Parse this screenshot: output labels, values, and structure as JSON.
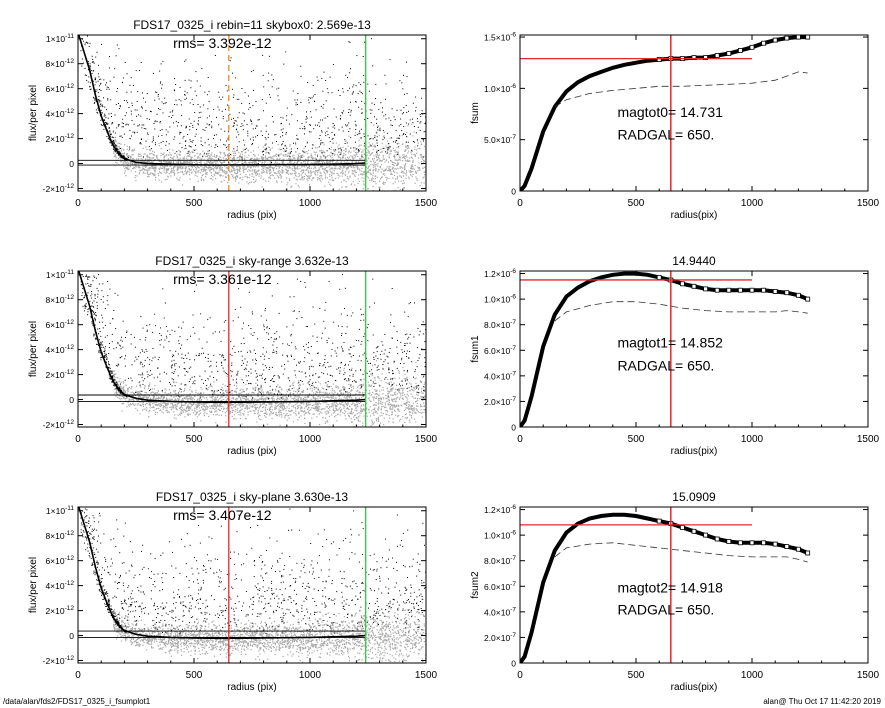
{
  "footer": {
    "path": "/data/alan/fds2/FDS17_0325_i_fsumplot1",
    "stamp": "alan@  Thu Oct 17 11:42:20 2019"
  },
  "colors": {
    "scatter_gray": "#a8a8a8",
    "scatter_black": "#000000",
    "red": "#e8262a",
    "green": "#2ecc40",
    "orange": "#f08a24"
  },
  "chart_data": [
    {
      "type": "scatter",
      "title": "FDS17_0325_i rebin=11    skybox0:  2.569e-13",
      "annotation": "rms= 3.392e-12",
      "xlabel": "radius (pix)",
      "ylabel": "flux/per pixel",
      "xlim": [
        0,
        1500
      ],
      "ylim": [
        -2.2e-12,
        1.03e-11
      ],
      "x_ticks": [
        {
          "v": 0,
          "label": "0"
        },
        {
          "v": 500,
          "label": "500"
        },
        {
          "v": 1000,
          "label": "1000"
        },
        {
          "v": 1500,
          "label": "1500"
        }
      ],
      "y_ticks": [
        {
          "v": -2e-12,
          "label": "-2×10",
          "exp": "-12"
        },
        {
          "v": 0,
          "label": "0",
          "exp": ""
        },
        {
          "v": 2e-12,
          "label": "2×10",
          "exp": "-12"
        },
        {
          "v": 4e-12,
          "label": "4×10",
          "exp": "-12"
        },
        {
          "v": 6e-12,
          "label": "6×10",
          "exp": "-12"
        },
        {
          "v": 8e-12,
          "label": "8×10",
          "exp": "-12"
        },
        {
          "v": 1e-11,
          "label": "1×10",
          "exp": "-11"
        }
      ],
      "profile": [
        [
          0,
          1.05e-11
        ],
        [
          50,
          7.5e-12
        ],
        [
          75,
          5.5e-12
        ],
        [
          100,
          3.8e-12
        ],
        [
          125,
          2.6e-12
        ],
        [
          150,
          1.5e-12
        ],
        [
          175,
          8e-13
        ],
        [
          200,
          4e-13
        ],
        [
          250,
          1e-13
        ],
        [
          300,
          0
        ],
        [
          400,
          -5e-14
        ],
        [
          500,
          -1e-13
        ],
        [
          600,
          -1.2e-13
        ],
        [
          800,
          -1e-13
        ],
        [
          1000,
          -8e-14
        ],
        [
          1100,
          -5e-14
        ],
        [
          1200,
          0
        ],
        [
          1240,
          5e-14
        ]
      ],
      "hlines": [
        2.569e-13,
        -1.2e-13
      ],
      "vlines": [
        {
          "x": 650,
          "color": "orange",
          "dashed": true
        },
        {
          "x": 1240,
          "color": "green",
          "dashed": false
        }
      ]
    },
    {
      "type": "line",
      "title": "",
      "xlabel": "radius(pix)",
      "ylabel": "fsum",
      "xlim": [
        0,
        1500
      ],
      "ylim": [
        0,
        1.52e-06
      ],
      "x_ticks": [
        {
          "v": 0,
          "label": "0"
        },
        {
          "v": 500,
          "label": "500"
        },
        {
          "v": 1000,
          "label": "1000"
        },
        {
          "v": 1500,
          "label": "1500"
        }
      ],
      "y_ticks": [
        {
          "v": 0,
          "label": "0",
          "exp": ""
        },
        {
          "v": 5e-07,
          "label": "5.0×10",
          "exp": "-7"
        },
        {
          "v": 1e-06,
          "label": "1.0×10",
          "exp": "-6"
        },
        {
          "v": 1.5e-06,
          "label": "1.5×10",
          "exp": "-6"
        }
      ],
      "series": [
        {
          "style": "solid-thick",
          "x": [
            0,
            20,
            50,
            100,
            150,
            200,
            250,
            300,
            350,
            400,
            450,
            500,
            550,
            600,
            650,
            700,
            750,
            800,
            850,
            900,
            950,
            1000,
            1050,
            1100,
            1150,
            1200,
            1240
          ],
          "y": [
            0,
            5e-08,
            2.2e-07,
            5.8e-07,
            8.2e-07,
            9.7e-07,
            1.06e-06,
            1.12e-06,
            1.16e-06,
            1.2e-06,
            1.23e-06,
            1.25e-06,
            1.27e-06,
            1.28e-06,
            1.29e-06,
            1.29e-06,
            1.3e-06,
            1.3e-06,
            1.32e-06,
            1.34e-06,
            1.37e-06,
            1.4e-06,
            1.44e-06,
            1.47e-06,
            1.49e-06,
            1.5e-06,
            1.5e-06
          ]
        },
        {
          "style": "dashed",
          "x": [
            150,
            200,
            300,
            400,
            500,
            600,
            700,
            800,
            900,
            1000,
            1100,
            1150,
            1200,
            1240
          ],
          "y": [
            8.2e-07,
            8.9e-07,
            9.5e-07,
            9.8e-07,
            1e-06,
            1.02e-06,
            1.02e-06,
            1.03e-06,
            1.04e-06,
            1.05e-06,
            1.08e-06,
            1.12e-06,
            1.16e-06,
            1.15e-06
          ]
        }
      ],
      "hline": {
        "y": 1.29e-06,
        "x_end": 1000
      },
      "vline": {
        "x": 650
      },
      "labels": [
        {
          "text": "magtot0=  14.731",
          "x": 420,
          "y": 7.2e-07
        },
        {
          "text": "RADGAL=    650.",
          "x": 420,
          "y": 5e-07
        }
      ]
    },
    {
      "type": "scatter",
      "title": "FDS17_0325_i sky-range  3.632e-13",
      "annotation": "rms= 3.361e-12",
      "xlabel": "radius (pix)",
      "ylabel": "flux/per pixel",
      "xlim": [
        0,
        1500
      ],
      "ylim": [
        -2.2e-12,
        1.03e-11
      ],
      "x_ticks": [
        {
          "v": 0,
          "label": "0"
        },
        {
          "v": 500,
          "label": "500"
        },
        {
          "v": 1000,
          "label": "1000"
        },
        {
          "v": 1500,
          "label": "1500"
        }
      ],
      "y_ticks": [
        {
          "v": -2e-12,
          "label": "-2×10",
          "exp": "-12"
        },
        {
          "v": 0,
          "label": "0",
          "exp": ""
        },
        {
          "v": 2e-12,
          "label": "2×10",
          "exp": "-12"
        },
        {
          "v": 4e-12,
          "label": "4×10",
          "exp": "-12"
        },
        {
          "v": 6e-12,
          "label": "6×10",
          "exp": "-12"
        },
        {
          "v": 8e-12,
          "label": "8×10",
          "exp": "-12"
        },
        {
          "v": 1e-11,
          "label": "1×10",
          "exp": "-11"
        }
      ],
      "profile": [
        [
          0,
          1.05e-11
        ],
        [
          50,
          7.5e-12
        ],
        [
          75,
          5.5e-12
        ],
        [
          100,
          3.8e-12
        ],
        [
          125,
          2.6e-12
        ],
        [
          150,
          1.5e-12
        ],
        [
          175,
          8e-13
        ],
        [
          200,
          4e-13
        ],
        [
          250,
          1e-13
        ],
        [
          300,
          -5e-14
        ],
        [
          400,
          -1.5e-13
        ],
        [
          500,
          -2e-13
        ],
        [
          600,
          -2.2e-13
        ],
        [
          800,
          -2e-13
        ],
        [
          1000,
          -1.5e-13
        ],
        [
          1100,
          -1e-13
        ],
        [
          1200,
          -5e-14
        ],
        [
          1240,
          0
        ]
      ],
      "hlines": [
        3.632e-13,
        -1.5e-13
      ],
      "vlines": [
        {
          "x": 650,
          "color": "red",
          "dashed": false
        },
        {
          "x": 1240,
          "color": "green",
          "dashed": false
        }
      ]
    },
    {
      "type": "line",
      "title": "14.9440",
      "xlabel": "radius(pix)",
      "ylabel": "fsum1",
      "xlim": [
        0,
        1500
      ],
      "ylim": [
        0,
        1.22e-06
      ],
      "x_ticks": [
        {
          "v": 0,
          "label": "0"
        },
        {
          "v": 500,
          "label": "500"
        },
        {
          "v": 1000,
          "label": "1000"
        },
        {
          "v": 1500,
          "label": "1500"
        }
      ],
      "y_ticks": [
        {
          "v": 0,
          "label": "0",
          "exp": ""
        },
        {
          "v": 2e-07,
          "label": "2.0×10",
          "exp": "-7"
        },
        {
          "v": 4e-07,
          "label": "4.0×10",
          "exp": "-7"
        },
        {
          "v": 6e-07,
          "label": "6.0×10",
          "exp": "-7"
        },
        {
          "v": 8e-07,
          "label": "8.0×10",
          "exp": "-7"
        },
        {
          "v": 1e-06,
          "label": "1.0×10",
          "exp": "-6"
        },
        {
          "v": 1.2e-06,
          "label": "1.2×10",
          "exp": "-6"
        }
      ],
      "series": [
        {
          "style": "solid-thick",
          "x": [
            0,
            20,
            50,
            100,
            150,
            200,
            250,
            300,
            350,
            400,
            450,
            500,
            550,
            600,
            650,
            700,
            750,
            800,
            850,
            900,
            950,
            1000,
            1050,
            1100,
            1150,
            1200,
            1240
          ],
          "y": [
            0,
            5e-08,
            2.4e-07,
            6.3e-07,
            8.8e-07,
            1.02e-06,
            1.09e-06,
            1.14e-06,
            1.17e-06,
            1.19e-06,
            1.2e-06,
            1.2e-06,
            1.19e-06,
            1.17e-06,
            1.15e-06,
            1.12e-06,
            1.1e-06,
            1.08e-06,
            1.07e-06,
            1.07e-06,
            1.07e-06,
            1.07e-06,
            1.07e-06,
            1.06e-06,
            1.05e-06,
            1.03e-06,
            1e-06
          ]
        },
        {
          "style": "dashed",
          "x": [
            150,
            200,
            300,
            400,
            500,
            600,
            700,
            800,
            900,
            1000,
            1100,
            1150,
            1200,
            1240
          ],
          "y": [
            8.3e-07,
            9e-07,
            9.5e-07,
            9.8e-07,
            9.8e-07,
            9.6e-07,
            9.3e-07,
            9.1e-07,
            9e-07,
            9e-07,
            9e-07,
            9.1e-07,
            9e-07,
            8.9e-07
          ]
        }
      ],
      "hline": {
        "y": 1.15e-06,
        "x_end": 1000
      },
      "vline": {
        "x": 650
      },
      "labels": [
        {
          "text": "magtot1=  14.852",
          "x": 420,
          "y": 6.2e-07
        },
        {
          "text": "RADGAL=    650.",
          "x": 420,
          "y": 4.4e-07
        }
      ]
    },
    {
      "type": "scatter",
      "title": "FDS17_0325_i sky-plane  3.630e-13",
      "annotation": "rms= 3.407e-12",
      "xlabel": "radius (pix)",
      "ylabel": "flux/per pixel",
      "xlim": [
        0,
        1500
      ],
      "ylim": [
        -2.2e-12,
        1.03e-11
      ],
      "x_ticks": [
        {
          "v": 0,
          "label": "0"
        },
        {
          "v": 500,
          "label": "500"
        },
        {
          "v": 1000,
          "label": "1000"
        },
        {
          "v": 1500,
          "label": "1500"
        }
      ],
      "y_ticks": [
        {
          "v": -2e-12,
          "label": "-2×10",
          "exp": "-12"
        },
        {
          "v": 0,
          "label": "0",
          "exp": ""
        },
        {
          "v": 2e-12,
          "label": "2×10",
          "exp": "-12"
        },
        {
          "v": 4e-12,
          "label": "4×10",
          "exp": "-12"
        },
        {
          "v": 6e-12,
          "label": "6×10",
          "exp": "-12"
        },
        {
          "v": 8e-12,
          "label": "8×10",
          "exp": "-12"
        },
        {
          "v": 1e-11,
          "label": "1×10",
          "exp": "-11"
        }
      ],
      "profile": [
        [
          0,
          1.05e-11
        ],
        [
          50,
          7.5e-12
        ],
        [
          75,
          5.5e-12
        ],
        [
          100,
          3.8e-12
        ],
        [
          125,
          2.6e-12
        ],
        [
          150,
          1.5e-12
        ],
        [
          175,
          8e-13
        ],
        [
          200,
          4e-13
        ],
        [
          250,
          1e-13
        ],
        [
          300,
          -5e-14
        ],
        [
          400,
          -1.5e-13
        ],
        [
          500,
          -2e-13
        ],
        [
          600,
          -2.2e-13
        ],
        [
          800,
          -2e-13
        ],
        [
          1000,
          -1.5e-13
        ],
        [
          1100,
          -1e-13
        ],
        [
          1200,
          -5e-14
        ],
        [
          1240,
          0
        ]
      ],
      "hlines": [
        3.63e-13,
        -1.5e-13
      ],
      "vlines": [
        {
          "x": 650,
          "color": "red",
          "dashed": false
        },
        {
          "x": 1240,
          "color": "green",
          "dashed": false
        }
      ]
    },
    {
      "type": "line",
      "title": "15.0909",
      "xlabel": "radius(pix)",
      "ylabel": "fsum2",
      "xlim": [
        0,
        1500
      ],
      "ylim": [
        0,
        1.22e-06
      ],
      "x_ticks": [
        {
          "v": 0,
          "label": "0"
        },
        {
          "v": 500,
          "label": "500"
        },
        {
          "v": 1000,
          "label": "1000"
        },
        {
          "v": 1500,
          "label": "1500"
        }
      ],
      "y_ticks": [
        {
          "v": 0,
          "label": "0",
          "exp": ""
        },
        {
          "v": 2e-07,
          "label": "2.0×10",
          "exp": "-7"
        },
        {
          "v": 4e-07,
          "label": "4.0×10",
          "exp": "-7"
        },
        {
          "v": 6e-07,
          "label": "6.0×10",
          "exp": "-7"
        },
        {
          "v": 8e-07,
          "label": "8.0×10",
          "exp": "-7"
        },
        {
          "v": 1e-06,
          "label": "1.0×10",
          "exp": "-6"
        },
        {
          "v": 1.2e-06,
          "label": "1.2×10",
          "exp": "-6"
        }
      ],
      "series": [
        {
          "style": "solid-thick",
          "x": [
            0,
            20,
            50,
            100,
            150,
            200,
            250,
            300,
            350,
            400,
            450,
            500,
            550,
            600,
            650,
            700,
            750,
            800,
            850,
            900,
            950,
            1000,
            1050,
            1100,
            1150,
            1200,
            1240
          ],
          "y": [
            0,
            5e-08,
            2.4e-07,
            6.3e-07,
            8.8e-07,
            1.02e-06,
            1.09e-06,
            1.13e-06,
            1.15e-06,
            1.16e-06,
            1.16e-06,
            1.15e-06,
            1.13e-06,
            1.11e-06,
            1.09e-06,
            1.06e-06,
            1.03e-06,
            1e-06,
            9.7e-07,
            9.5e-07,
            9.4e-07,
            9.4e-07,
            9.4e-07,
            9.3e-07,
            9.1e-07,
            8.9e-07,
            8.6e-07
          ]
        },
        {
          "style": "dashed",
          "x": [
            150,
            200,
            300,
            400,
            500,
            600,
            700,
            800,
            900,
            1000,
            1100,
            1150,
            1200,
            1240
          ],
          "y": [
            8.3e-07,
            9e-07,
            9.3e-07,
            9.4e-07,
            9.2e-07,
            9e-07,
            8.8e-07,
            8.6e-07,
            8.4e-07,
            8.3e-07,
            8.3e-07,
            8.3e-07,
            8.1e-07,
            7.9e-07
          ]
        }
      ],
      "hline": {
        "y": 1.08e-06,
        "x_end": 1000
      },
      "vline": {
        "x": 650
      },
      "labels": [
        {
          "text": "magtot2=  14.918",
          "x": 420,
          "y": 5.5e-07
        },
        {
          "text": "RADGAL=    650.",
          "x": 420,
          "y": 3.8e-07
        }
      ]
    }
  ]
}
